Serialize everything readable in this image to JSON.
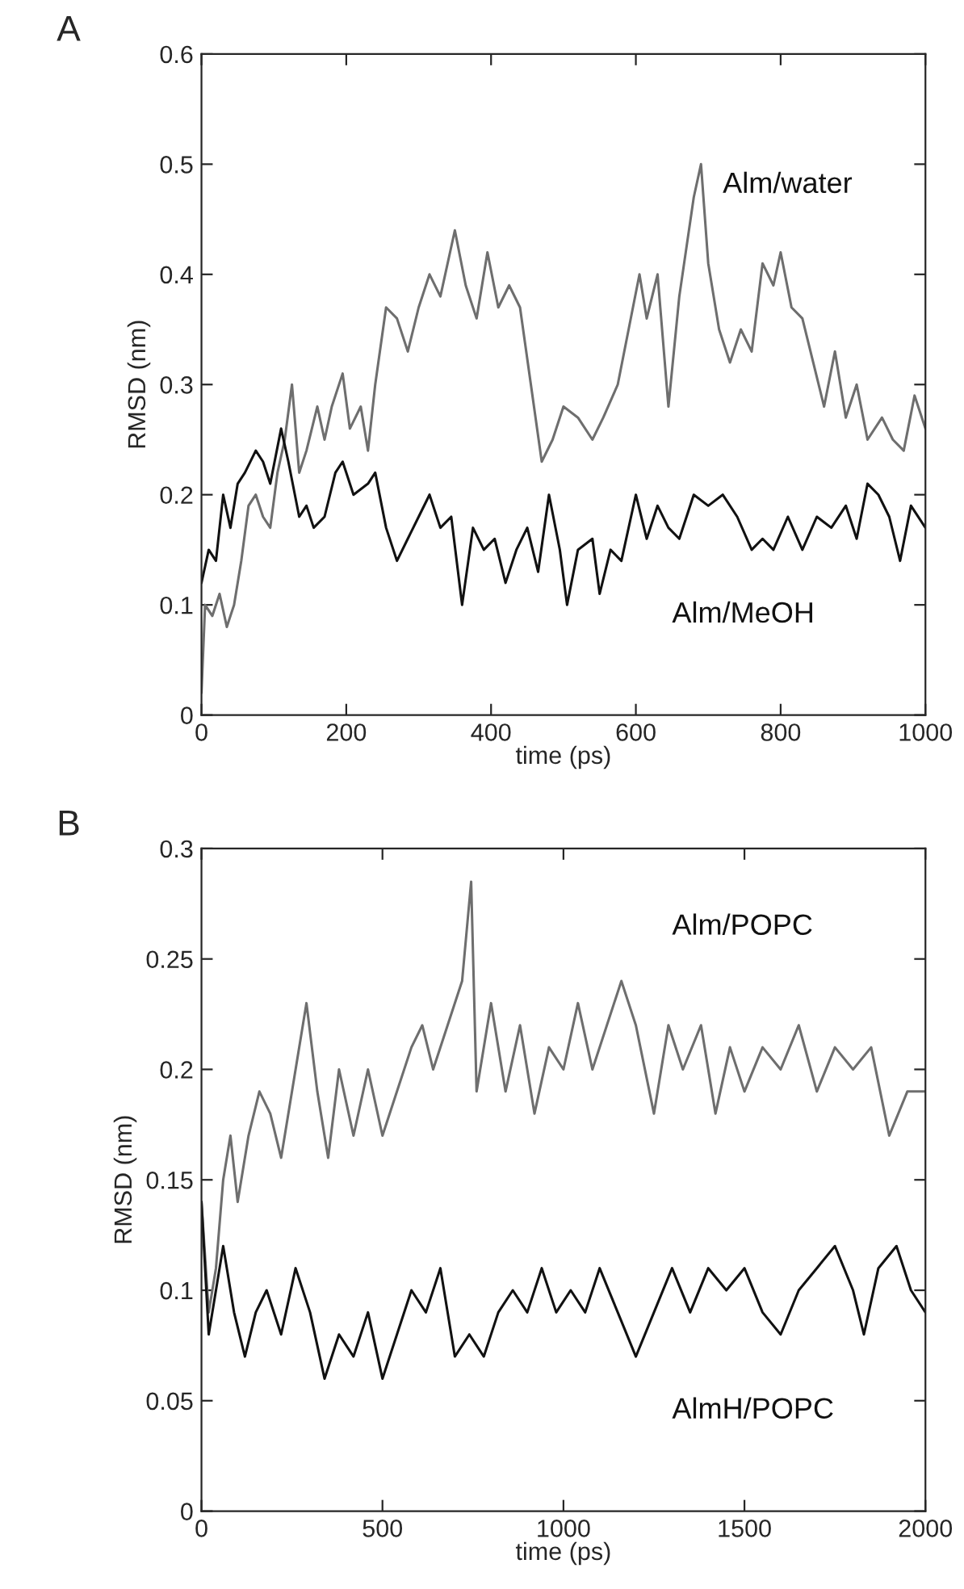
{
  "chart_data": [
    {
      "type": "line",
      "ylabel": "RMSD (nm)",
      "xlabel": "time (ps)",
      "annotations": [
        "A"
      ],
      "xlim": [
        0,
        1000
      ],
      "xticks": [
        0,
        200,
        400,
        600,
        800,
        1000
      ],
      "ylim": [
        0,
        0.6
      ],
      "yticks": [
        0,
        0.1,
        0.2,
        0.3,
        0.4,
        0.5,
        0.6
      ],
      "grid": false,
      "legend": false,
      "series": [
        {
          "name": "Alm/water",
          "color": "#6e6e6e",
          "x": [
            0,
            5,
            15,
            25,
            35,
            45,
            55,
            65,
            75,
            85,
            95,
            105,
            115,
            125,
            135,
            145,
            160,
            170,
            180,
            195,
            205,
            220,
            230,
            240,
            255,
            270,
            285,
            300,
            315,
            330,
            350,
            365,
            380,
            395,
            410,
            425,
            440,
            455,
            470,
            485,
            500,
            520,
            540,
            555,
            575,
            590,
            605,
            615,
            630,
            645,
            660,
            680,
            690,
            700,
            715,
            730,
            745,
            760,
            775,
            790,
            800,
            815,
            830,
            845,
            860,
            875,
            890,
            905,
            920,
            940,
            955,
            970,
            985,
            1000
          ],
          "values": [
            0.02,
            0.1,
            0.09,
            0.11,
            0.08,
            0.1,
            0.14,
            0.19,
            0.2,
            0.18,
            0.17,
            0.22,
            0.25,
            0.3,
            0.22,
            0.24,
            0.28,
            0.25,
            0.28,
            0.31,
            0.26,
            0.28,
            0.24,
            0.3,
            0.37,
            0.36,
            0.33,
            0.37,
            0.4,
            0.38,
            0.44,
            0.39,
            0.36,
            0.42,
            0.37,
            0.39,
            0.37,
            0.3,
            0.23,
            0.25,
            0.28,
            0.27,
            0.25,
            0.27,
            0.3,
            0.35,
            0.4,
            0.36,
            0.4,
            0.28,
            0.38,
            0.47,
            0.5,
            0.41,
            0.35,
            0.32,
            0.35,
            0.33,
            0.41,
            0.39,
            0.42,
            0.37,
            0.36,
            0.32,
            0.28,
            0.33,
            0.27,
            0.3,
            0.25,
            0.27,
            0.25,
            0.24,
            0.29,
            0.26
          ]
        },
        {
          "name": "Alm/MeOH",
          "color": "#111111",
          "x": [
            0,
            10,
            20,
            30,
            40,
            50,
            60,
            75,
            85,
            95,
            110,
            120,
            135,
            145,
            155,
            170,
            185,
            195,
            210,
            230,
            240,
            255,
            270,
            285,
            300,
            315,
            330,
            345,
            360,
            375,
            390,
            405,
            420,
            435,
            450,
            465,
            480,
            495,
            505,
            520,
            540,
            550,
            565,
            580,
            600,
            615,
            630,
            645,
            660,
            680,
            700,
            720,
            740,
            760,
            775,
            790,
            810,
            830,
            850,
            870,
            890,
            905,
            920,
            935,
            950,
            965,
            980,
            1000
          ],
          "values": [
            0.12,
            0.15,
            0.14,
            0.2,
            0.17,
            0.21,
            0.22,
            0.24,
            0.23,
            0.21,
            0.26,
            0.23,
            0.18,
            0.19,
            0.17,
            0.18,
            0.22,
            0.23,
            0.2,
            0.21,
            0.22,
            0.17,
            0.14,
            0.16,
            0.18,
            0.2,
            0.17,
            0.18,
            0.1,
            0.17,
            0.15,
            0.16,
            0.12,
            0.15,
            0.17,
            0.13,
            0.2,
            0.15,
            0.1,
            0.15,
            0.16,
            0.11,
            0.15,
            0.14,
            0.2,
            0.16,
            0.19,
            0.17,
            0.16,
            0.2,
            0.19,
            0.2,
            0.18,
            0.15,
            0.16,
            0.15,
            0.18,
            0.15,
            0.18,
            0.17,
            0.19,
            0.16,
            0.21,
            0.2,
            0.18,
            0.14,
            0.19,
            0.17
          ]
        }
      ]
    },
    {
      "type": "line",
      "ylabel": "RMSD (nm)",
      "xlabel": "time (ps)",
      "annotations": [
        "B"
      ],
      "xlim": [
        0,
        2000
      ],
      "xticks": [
        0,
        500,
        1000,
        1500,
        2000
      ],
      "ylim": [
        0,
        0.3
      ],
      "yticks": [
        0,
        0.05,
        0.1,
        0.15,
        0.2,
        0.25,
        0.3
      ],
      "grid": false,
      "legend": false,
      "series": [
        {
          "name": "Alm/POPC",
          "color": "#6e6e6e",
          "x": [
            0,
            20,
            40,
            60,
            80,
            100,
            130,
            160,
            190,
            220,
            260,
            290,
            320,
            350,
            380,
            420,
            460,
            500,
            540,
            580,
            610,
            640,
            680,
            720,
            745,
            760,
            800,
            840,
            880,
            920,
            960,
            1000,
            1040,
            1080,
            1120,
            1160,
            1200,
            1250,
            1290,
            1330,
            1380,
            1420,
            1460,
            1500,
            1550,
            1600,
            1650,
            1700,
            1750,
            1800,
            1850,
            1900,
            1950,
            2000
          ],
          "values": [
            0.14,
            0.09,
            0.11,
            0.15,
            0.17,
            0.14,
            0.17,
            0.19,
            0.18,
            0.16,
            0.2,
            0.23,
            0.19,
            0.16,
            0.2,
            0.17,
            0.2,
            0.17,
            0.19,
            0.21,
            0.22,
            0.2,
            0.22,
            0.24,
            0.285,
            0.19,
            0.23,
            0.19,
            0.22,
            0.18,
            0.21,
            0.2,
            0.23,
            0.2,
            0.22,
            0.24,
            0.22,
            0.18,
            0.22,
            0.2,
            0.22,
            0.18,
            0.21,
            0.19,
            0.21,
            0.2,
            0.22,
            0.19,
            0.21,
            0.2,
            0.21,
            0.17,
            0.19,
            0.19
          ]
        },
        {
          "name": "AlmH/POPC",
          "color": "#111111",
          "x": [
            0,
            20,
            40,
            60,
            90,
            120,
            150,
            180,
            220,
            260,
            300,
            340,
            380,
            420,
            460,
            500,
            540,
            580,
            620,
            660,
            700,
            740,
            780,
            820,
            860,
            900,
            940,
            980,
            1020,
            1060,
            1100,
            1150,
            1200,
            1250,
            1300,
            1350,
            1400,
            1450,
            1500,
            1550,
            1600,
            1650,
            1700,
            1750,
            1800,
            1830,
            1870,
            1920,
            1960,
            2000
          ],
          "values": [
            0.14,
            0.08,
            0.1,
            0.12,
            0.09,
            0.07,
            0.09,
            0.1,
            0.08,
            0.11,
            0.09,
            0.06,
            0.08,
            0.07,
            0.09,
            0.06,
            0.08,
            0.1,
            0.09,
            0.11,
            0.07,
            0.08,
            0.07,
            0.09,
            0.1,
            0.09,
            0.11,
            0.09,
            0.1,
            0.09,
            0.11,
            0.09,
            0.07,
            0.09,
            0.11,
            0.09,
            0.11,
            0.1,
            0.11,
            0.09,
            0.08,
            0.1,
            0.11,
            0.12,
            0.1,
            0.08,
            0.11,
            0.12,
            0.1,
            0.09
          ]
        }
      ]
    }
  ]
}
